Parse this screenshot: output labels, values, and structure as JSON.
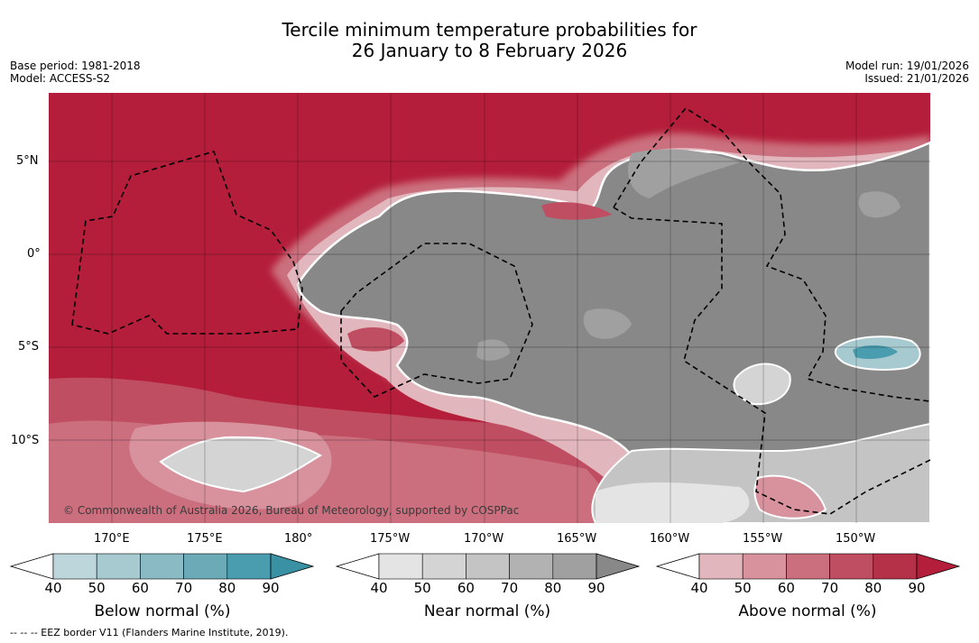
{
  "title": {
    "line1": "Tercile minimum temperature probabilities for",
    "line2": "26 January to 8 February 2026"
  },
  "meta": {
    "base_period": "Base period: 1981-2018",
    "model": "Model: ACCESS-S2",
    "model_run": "Model run: 19/01/2026",
    "issued": "Issued: 21/01/2026"
  },
  "map": {
    "lon_labels": [
      "170°E",
      "175°E",
      "180°",
      "175°W",
      "170°W",
      "165°W",
      "160°W",
      "155°W",
      "150°W"
    ],
    "lat_labels": [
      "5°N",
      "0°",
      "5°S",
      "10°S"
    ],
    "credit": "© Commonwealth of Australia 2026, Bureau of Meteorology, supported by COSPPac",
    "colors": {
      "above_dominant": "#b41e3a",
      "near_dominant": "#888888",
      "below_peak": "#3a9bab"
    }
  },
  "colorbars": [
    {
      "label": "Below normal (%)",
      "ticks": [
        "40",
        "50",
        "60",
        "70",
        "80",
        "90"
      ],
      "colors": [
        "#ffffff",
        "#bdd6dc",
        "#a7cad1",
        "#8abac4",
        "#6caab7",
        "#4a9dae",
        "#3a91a3"
      ]
    },
    {
      "label": "Near normal (%)",
      "ticks": [
        "40",
        "50",
        "60",
        "70",
        "80",
        "90"
      ],
      "colors": [
        "#ffffff",
        "#e4e4e4",
        "#d4d4d4",
        "#c4c4c4",
        "#b2b2b2",
        "#a0a0a0",
        "#888888"
      ]
    },
    {
      "label": "Above normal (%)",
      "ticks": [
        "40",
        "50",
        "60",
        "70",
        "80",
        "90"
      ],
      "colors": [
        "#ffffff",
        "#e2b6bd",
        "#d7929d",
        "#cb6f7e",
        "#c04e62",
        "#b53148",
        "#b41e3a"
      ]
    }
  ],
  "footnote": "-- -- -- EEZ border V11 (Flanders Marine Institute, 2019)."
}
